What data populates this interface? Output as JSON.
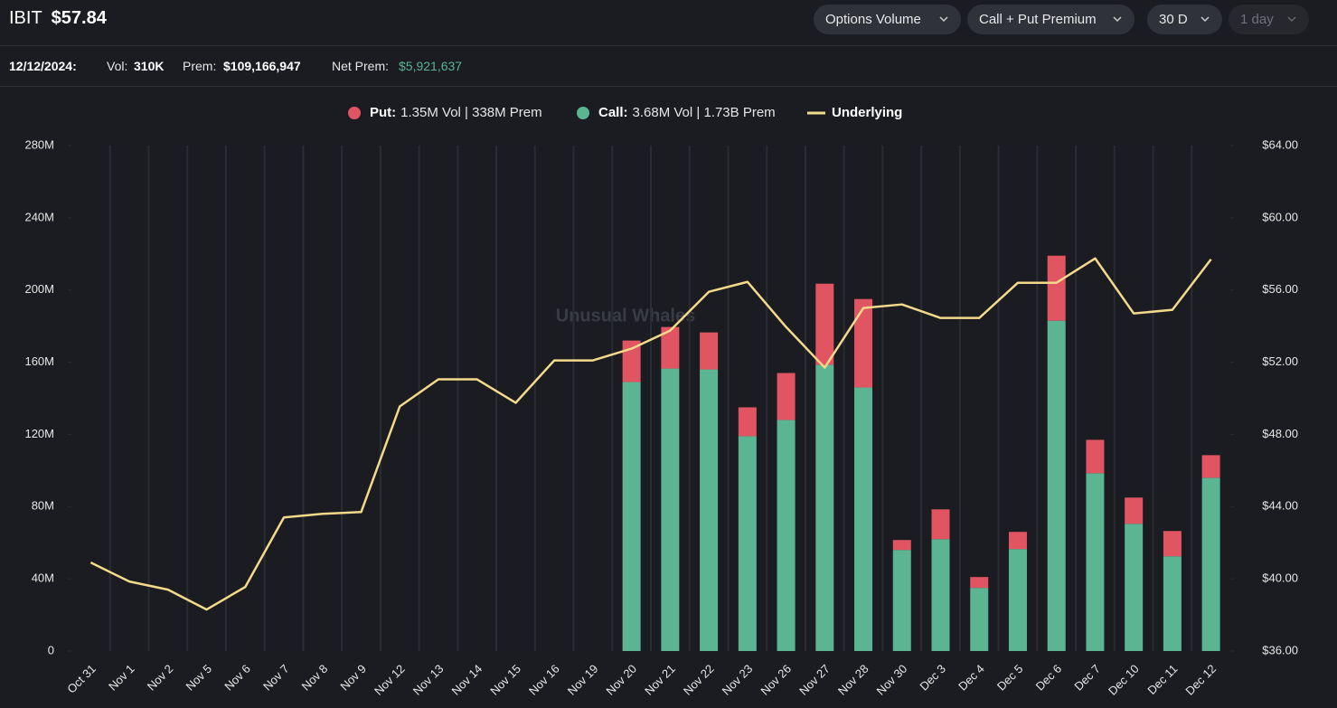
{
  "header": {
    "symbol": "IBIT",
    "price": "$57.84",
    "controls": [
      "Options Volume",
      "Call + Put Premium",
      "30 D",
      "1 day"
    ]
  },
  "summary": {
    "date": "12/12/2024:",
    "vol_label": "Vol:",
    "vol": "310K",
    "prem_label": "Prem:",
    "prem": "$109,166,947",
    "net_label": "Net Prem:",
    "net": "$5,921,637"
  },
  "watermark": "Unusual Whales",
  "chart_data": {
    "type": "bar",
    "stacked": true,
    "categories": [
      "Oct 31",
      "Nov 1",
      "Nov 2",
      "Nov 5",
      "Nov 6",
      "Nov 7",
      "Nov 8",
      "Nov 9",
      "Nov 12",
      "Nov 13",
      "Nov 14",
      "Nov 15",
      "Nov 16",
      "Nov 19",
      "Nov 20",
      "Nov 21",
      "Nov 22",
      "Nov 23",
      "Nov 26",
      "Nov 27",
      "Nov 28",
      "Nov 30",
      "Dec 3",
      "Dec 4",
      "Dec 5",
      "Dec 6",
      "Dec 7",
      "Dec 10",
      "Dec 11",
      "Dec 12"
    ],
    "series": [
      {
        "name": "Call:",
        "detail": "3.68M Vol | 1.73B Prem",
        "color": "#5bb592",
        "type": "bar",
        "values": [
          null,
          null,
          null,
          null,
          null,
          null,
          null,
          null,
          null,
          null,
          null,
          null,
          null,
          null,
          149000000,
          156500000,
          156000000,
          119000000,
          128000000,
          158500000,
          146000000,
          56000000,
          62000000,
          35000000,
          56500000,
          183000000,
          98500000,
          70500000,
          52500000,
          96000000
        ]
      },
      {
        "name": "Put:",
        "detail": "1.35M Vol | 338M Prem",
        "color": "#e05561",
        "type": "bar",
        "values": [
          null,
          null,
          null,
          null,
          null,
          null,
          null,
          null,
          null,
          null,
          null,
          null,
          null,
          null,
          23000000,
          23000000,
          20500000,
          16000000,
          26000000,
          45000000,
          49000000,
          5500000,
          16500000,
          6000000,
          9500000,
          36000000,
          18500000,
          14500000,
          14000000,
          12500000
        ]
      },
      {
        "name": "Underlying",
        "color": "#f3d98a",
        "type": "line",
        "axis": "y2",
        "values": [
          40.9,
          39.85,
          39.4,
          38.3,
          39.55,
          43.4,
          43.6,
          43.7,
          49.55,
          51.05,
          51.05,
          49.75,
          52.1,
          52.1,
          52.75,
          53.75,
          55.9,
          56.45,
          53.95,
          51.7,
          55.0,
          55.2,
          54.45,
          54.45,
          56.4,
          56.4,
          57.75,
          54.7,
          54.9,
          57.7
        ]
      }
    ],
    "ylim": [
      0,
      280000000
    ],
    "yticks": [
      0,
      {
        "value": 40000000,
        "label": "40M"
      },
      {
        "value": 80000000,
        "label": "80M"
      },
      {
        "value": 120000000,
        "label": "120M"
      },
      {
        "value": 160000000,
        "label": "160M"
      },
      {
        "value": 200000000,
        "label": "200M"
      },
      {
        "value": 240000000,
        "label": "240M"
      },
      {
        "value": 280000000,
        "label": "280M"
      }
    ],
    "y2lim": [
      36,
      64
    ],
    "y2ticks": [
      {
        "value": 36,
        "label": "$36.00"
      },
      {
        "value": 40,
        "label": "$40.00"
      },
      {
        "value": 44,
        "label": "$44.00"
      },
      {
        "value": 48,
        "label": "$48.00"
      },
      {
        "value": 52,
        "label": "$52.00"
      },
      {
        "value": 56,
        "label": "$56.00"
      },
      {
        "value": 60,
        "label": "$60.00"
      },
      {
        "value": 64,
        "label": "$64.00"
      }
    ],
    "grid": "x",
    "legend": "top"
  }
}
